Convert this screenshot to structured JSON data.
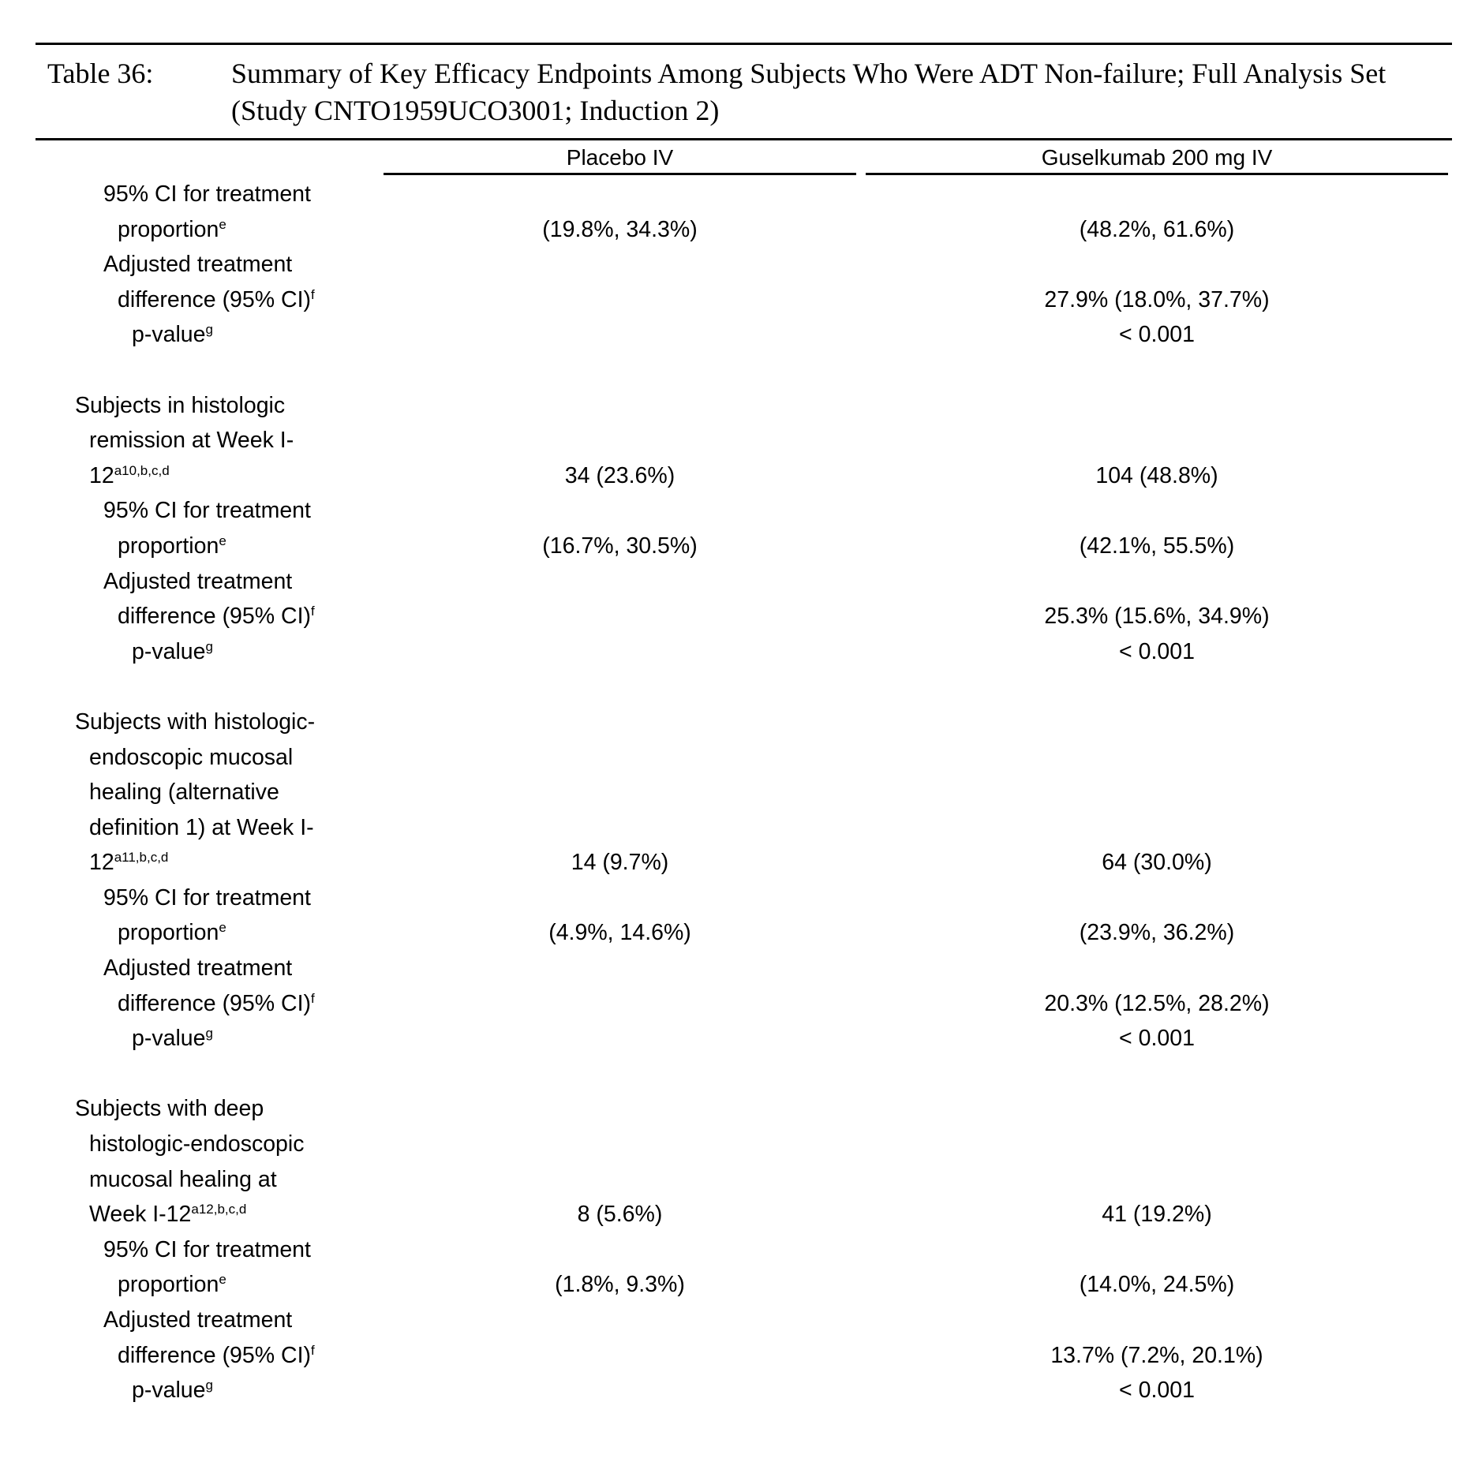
{
  "title": {
    "label": "Table 36:",
    "text": "Summary of Key Efficacy Endpoints Among Subjects Who Were ADT Non-failure; Full Analysis Set (Study CNTO1959UCO3001; Induction 2)"
  },
  "columns": {
    "placebo": "Placebo IV",
    "guselkumab": "Guselkumab 200 mg IV"
  },
  "rows": [
    {
      "label": "95% CI for treatment",
      "indent": 2
    },
    {
      "label": "proportion",
      "sup": "e",
      "indent": 3,
      "placebo": "(19.8%, 34.3%)",
      "guselkumab": "(48.2%, 61.6%)"
    },
    {
      "label": "Adjusted treatment",
      "indent": 2
    },
    {
      "label": "difference (95% CI)",
      "sup": "f",
      "indent": 3,
      "guselkumab": "27.9% (18.0%, 37.7%)"
    },
    {
      "label": "p-value",
      "sup": "g",
      "indent": 4,
      "guselkumab": "< 0.001"
    },
    {
      "label": ""
    },
    {
      "label": "Subjects in histologic",
      "indent": 0
    },
    {
      "label": "remission at Week I-",
      "indent": 1
    },
    {
      "label": "12",
      "sup": "a10,b,c,d",
      "indent": 1,
      "placebo": "34 (23.6%)",
      "guselkumab": "104 (48.8%)"
    },
    {
      "label": "95% CI for treatment",
      "indent": 2
    },
    {
      "label": "proportion",
      "sup": "e",
      "indent": 3,
      "placebo": "(16.7%, 30.5%)",
      "guselkumab": "(42.1%, 55.5%)"
    },
    {
      "label": "Adjusted treatment",
      "indent": 2
    },
    {
      "label": "difference (95% CI)",
      "sup": "f",
      "indent": 3,
      "guselkumab": "25.3% (15.6%, 34.9%)"
    },
    {
      "label": "p-value",
      "sup": "g",
      "indent": 4,
      "guselkumab": "< 0.001"
    },
    {
      "label": ""
    },
    {
      "label": "Subjects with histologic-",
      "indent": 0
    },
    {
      "label": "endoscopic mucosal",
      "indent": 1
    },
    {
      "label": "healing (alternative",
      "indent": 1
    },
    {
      "label": "definition 1) at Week I-",
      "indent": 1
    },
    {
      "label": "12",
      "sup": "a11,b,c,d",
      "indent": 1,
      "placebo": "14 (9.7%)",
      "guselkumab": "64 (30.0%)"
    },
    {
      "label": "95% CI for treatment",
      "indent": 2
    },
    {
      "label": "proportion",
      "sup": "e",
      "indent": 3,
      "placebo": "(4.9%, 14.6%)",
      "guselkumab": "(23.9%, 36.2%)"
    },
    {
      "label": "Adjusted treatment",
      "indent": 2
    },
    {
      "label": "difference (95% CI)",
      "sup": "f",
      "indent": 3,
      "guselkumab": "20.3% (12.5%, 28.2%)"
    },
    {
      "label": "p-value",
      "sup": "g",
      "indent": 4,
      "guselkumab": "< 0.001"
    },
    {
      "label": ""
    },
    {
      "label": "Subjects with deep",
      "indent": 0
    },
    {
      "label": "histologic-endoscopic",
      "indent": 1
    },
    {
      "label": "mucosal healing at",
      "indent": 1
    },
    {
      "label": "Week I-12",
      "sup": "a12,b,c,d",
      "indent": 1,
      "placebo": "8 (5.6%)",
      "guselkumab": "41 (19.2%)"
    },
    {
      "label": "95% CI for treatment",
      "indent": 2
    },
    {
      "label": "proportion",
      "sup": "e",
      "indent": 3,
      "placebo": "(1.8%, 9.3%)",
      "guselkumab": "(14.0%, 24.5%)"
    },
    {
      "label": "Adjusted treatment",
      "indent": 2
    },
    {
      "label": "difference (95% CI)",
      "sup": "f",
      "indent": 3,
      "guselkumab": "13.7% (7.2%, 20.1%)"
    },
    {
      "label": "p-value",
      "sup": "g",
      "indent": 4,
      "guselkumab": "< 0.001"
    }
  ]
}
